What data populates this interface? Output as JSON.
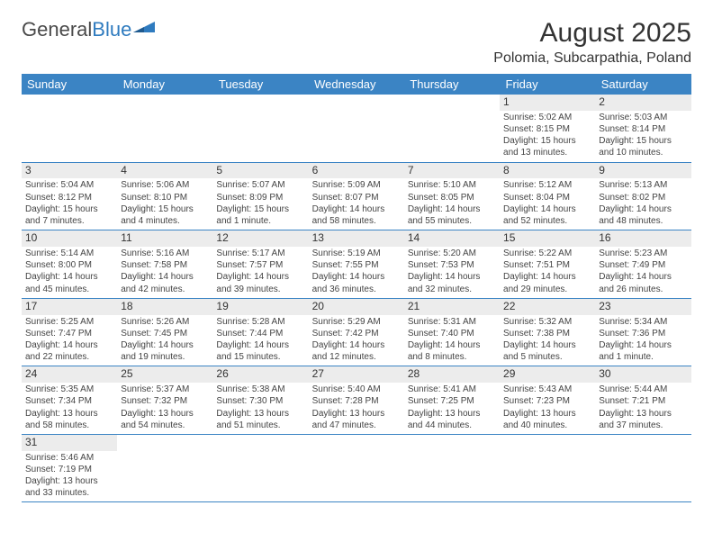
{
  "logo": {
    "text1": "General",
    "text2": "Blue"
  },
  "title": "August 2025",
  "location": "Polomia, Subcarpathia, Poland",
  "colors": {
    "header_bg": "#3b84c4",
    "header_text": "#ffffff",
    "border": "#3b84c4",
    "daynum_bg": "#ececec",
    "logo_blue": "#2f7bbf"
  },
  "daysOfWeek": [
    "Sunday",
    "Monday",
    "Tuesday",
    "Wednesday",
    "Thursday",
    "Friday",
    "Saturday"
  ],
  "weeks": [
    [
      null,
      null,
      null,
      null,
      null,
      {
        "n": "1",
        "sr": "Sunrise: 5:02 AM",
        "ss": "Sunset: 8:15 PM",
        "dl1": "Daylight: 15 hours",
        "dl2": "and 13 minutes."
      },
      {
        "n": "2",
        "sr": "Sunrise: 5:03 AM",
        "ss": "Sunset: 8:14 PM",
        "dl1": "Daylight: 15 hours",
        "dl2": "and 10 minutes."
      }
    ],
    [
      {
        "n": "3",
        "sr": "Sunrise: 5:04 AM",
        "ss": "Sunset: 8:12 PM",
        "dl1": "Daylight: 15 hours",
        "dl2": "and 7 minutes."
      },
      {
        "n": "4",
        "sr": "Sunrise: 5:06 AM",
        "ss": "Sunset: 8:10 PM",
        "dl1": "Daylight: 15 hours",
        "dl2": "and 4 minutes."
      },
      {
        "n": "5",
        "sr": "Sunrise: 5:07 AM",
        "ss": "Sunset: 8:09 PM",
        "dl1": "Daylight: 15 hours",
        "dl2": "and 1 minute."
      },
      {
        "n": "6",
        "sr": "Sunrise: 5:09 AM",
        "ss": "Sunset: 8:07 PM",
        "dl1": "Daylight: 14 hours",
        "dl2": "and 58 minutes."
      },
      {
        "n": "7",
        "sr": "Sunrise: 5:10 AM",
        "ss": "Sunset: 8:05 PM",
        "dl1": "Daylight: 14 hours",
        "dl2": "and 55 minutes."
      },
      {
        "n": "8",
        "sr": "Sunrise: 5:12 AM",
        "ss": "Sunset: 8:04 PM",
        "dl1": "Daylight: 14 hours",
        "dl2": "and 52 minutes."
      },
      {
        "n": "9",
        "sr": "Sunrise: 5:13 AM",
        "ss": "Sunset: 8:02 PM",
        "dl1": "Daylight: 14 hours",
        "dl2": "and 48 minutes."
      }
    ],
    [
      {
        "n": "10",
        "sr": "Sunrise: 5:14 AM",
        "ss": "Sunset: 8:00 PM",
        "dl1": "Daylight: 14 hours",
        "dl2": "and 45 minutes."
      },
      {
        "n": "11",
        "sr": "Sunrise: 5:16 AM",
        "ss": "Sunset: 7:58 PM",
        "dl1": "Daylight: 14 hours",
        "dl2": "and 42 minutes."
      },
      {
        "n": "12",
        "sr": "Sunrise: 5:17 AM",
        "ss": "Sunset: 7:57 PM",
        "dl1": "Daylight: 14 hours",
        "dl2": "and 39 minutes."
      },
      {
        "n": "13",
        "sr": "Sunrise: 5:19 AM",
        "ss": "Sunset: 7:55 PM",
        "dl1": "Daylight: 14 hours",
        "dl2": "and 36 minutes."
      },
      {
        "n": "14",
        "sr": "Sunrise: 5:20 AM",
        "ss": "Sunset: 7:53 PM",
        "dl1": "Daylight: 14 hours",
        "dl2": "and 32 minutes."
      },
      {
        "n": "15",
        "sr": "Sunrise: 5:22 AM",
        "ss": "Sunset: 7:51 PM",
        "dl1": "Daylight: 14 hours",
        "dl2": "and 29 minutes."
      },
      {
        "n": "16",
        "sr": "Sunrise: 5:23 AM",
        "ss": "Sunset: 7:49 PM",
        "dl1": "Daylight: 14 hours",
        "dl2": "and 26 minutes."
      }
    ],
    [
      {
        "n": "17",
        "sr": "Sunrise: 5:25 AM",
        "ss": "Sunset: 7:47 PM",
        "dl1": "Daylight: 14 hours",
        "dl2": "and 22 minutes."
      },
      {
        "n": "18",
        "sr": "Sunrise: 5:26 AM",
        "ss": "Sunset: 7:45 PM",
        "dl1": "Daylight: 14 hours",
        "dl2": "and 19 minutes."
      },
      {
        "n": "19",
        "sr": "Sunrise: 5:28 AM",
        "ss": "Sunset: 7:44 PM",
        "dl1": "Daylight: 14 hours",
        "dl2": "and 15 minutes."
      },
      {
        "n": "20",
        "sr": "Sunrise: 5:29 AM",
        "ss": "Sunset: 7:42 PM",
        "dl1": "Daylight: 14 hours",
        "dl2": "and 12 minutes."
      },
      {
        "n": "21",
        "sr": "Sunrise: 5:31 AM",
        "ss": "Sunset: 7:40 PM",
        "dl1": "Daylight: 14 hours",
        "dl2": "and 8 minutes."
      },
      {
        "n": "22",
        "sr": "Sunrise: 5:32 AM",
        "ss": "Sunset: 7:38 PM",
        "dl1": "Daylight: 14 hours",
        "dl2": "and 5 minutes."
      },
      {
        "n": "23",
        "sr": "Sunrise: 5:34 AM",
        "ss": "Sunset: 7:36 PM",
        "dl1": "Daylight: 14 hours",
        "dl2": "and 1 minute."
      }
    ],
    [
      {
        "n": "24",
        "sr": "Sunrise: 5:35 AM",
        "ss": "Sunset: 7:34 PM",
        "dl1": "Daylight: 13 hours",
        "dl2": "and 58 minutes."
      },
      {
        "n": "25",
        "sr": "Sunrise: 5:37 AM",
        "ss": "Sunset: 7:32 PM",
        "dl1": "Daylight: 13 hours",
        "dl2": "and 54 minutes."
      },
      {
        "n": "26",
        "sr": "Sunrise: 5:38 AM",
        "ss": "Sunset: 7:30 PM",
        "dl1": "Daylight: 13 hours",
        "dl2": "and 51 minutes."
      },
      {
        "n": "27",
        "sr": "Sunrise: 5:40 AM",
        "ss": "Sunset: 7:28 PM",
        "dl1": "Daylight: 13 hours",
        "dl2": "and 47 minutes."
      },
      {
        "n": "28",
        "sr": "Sunrise: 5:41 AM",
        "ss": "Sunset: 7:25 PM",
        "dl1": "Daylight: 13 hours",
        "dl2": "and 44 minutes."
      },
      {
        "n": "29",
        "sr": "Sunrise: 5:43 AM",
        "ss": "Sunset: 7:23 PM",
        "dl1": "Daylight: 13 hours",
        "dl2": "and 40 minutes."
      },
      {
        "n": "30",
        "sr": "Sunrise: 5:44 AM",
        "ss": "Sunset: 7:21 PM",
        "dl1": "Daylight: 13 hours",
        "dl2": "and 37 minutes."
      }
    ],
    [
      {
        "n": "31",
        "sr": "Sunrise: 5:46 AM",
        "ss": "Sunset: 7:19 PM",
        "dl1": "Daylight: 13 hours",
        "dl2": "and 33 minutes."
      },
      null,
      null,
      null,
      null,
      null,
      null
    ]
  ]
}
